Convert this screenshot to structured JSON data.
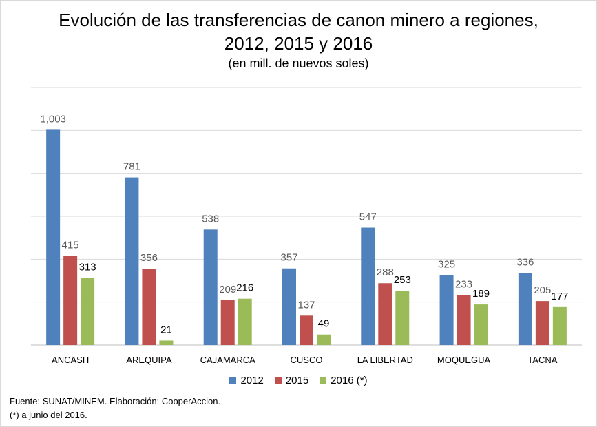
{
  "chart_data": {
    "type": "bar",
    "title_lines": [
      "Evolución de las transferencias de canon minero a regiones,",
      "2012, 2015 y 2016"
    ],
    "subtitle": "(en mill. de nuevos soles)",
    "categories": [
      "ANCASH",
      "AREQUIPA",
      "CAJAMARCA",
      "CUSCO",
      "LA LIBERTAD",
      "MOQUEGUA",
      "TACNA"
    ],
    "series": [
      {
        "name": "2012",
        "color": "#4f81bd",
        "labels": [
          "1,003",
          "781",
          "538",
          "357",
          "547",
          "325",
          "336"
        ],
        "values": [
          1003,
          781,
          538,
          357,
          547,
          325,
          336
        ]
      },
      {
        "name": "2015",
        "color": "#c0504d",
        "labels": [
          "415",
          "356",
          "209",
          "137",
          "288",
          "233",
          "205"
        ],
        "values": [
          415,
          356,
          209,
          137,
          288,
          233,
          205
        ]
      },
      {
        "name": "2016 (*)",
        "color": "#9bbb59",
        "labels": [
          "313",
          "21",
          "216",
          "49",
          "253",
          "189",
          "177"
        ],
        "values": [
          313,
          21,
          216,
          49,
          253,
          189,
          177
        ]
      }
    ],
    "ylim": [
      0,
      1200
    ],
    "grid": true,
    "y_tick_labels_shown": false,
    "legend_position": "bottom"
  },
  "footer": {
    "source": "Fuente: SUNAT/MINEM.  Elaboración: CooperAccion.",
    "note": "(*) a junio del 2016."
  }
}
